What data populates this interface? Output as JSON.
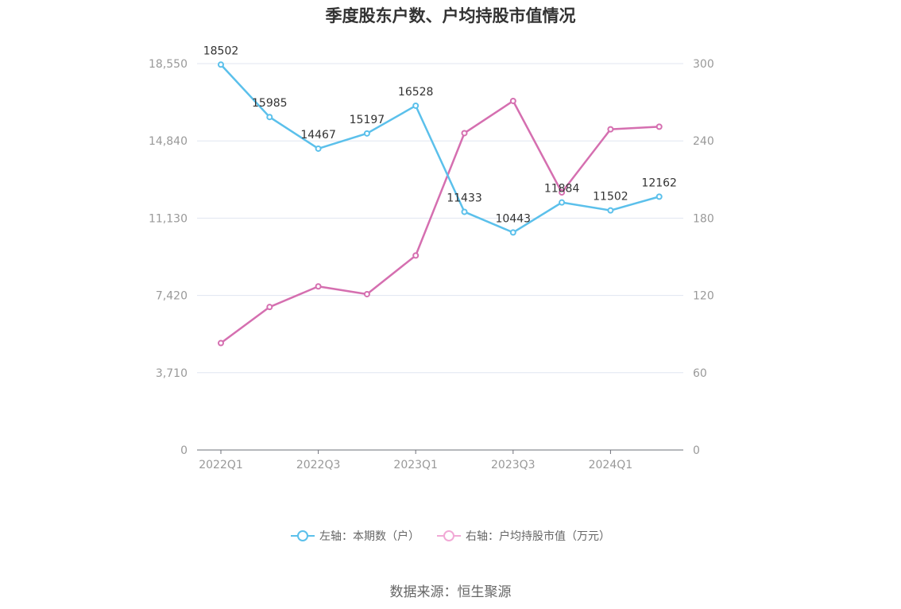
{
  "chart_data": {
    "type": "line",
    "title": "季度股东户数、户均持股市值情况",
    "categories": [
      "2022Q1",
      "2022Q2",
      "2022Q3",
      "2022Q4",
      "2023Q1",
      "2023Q2",
      "2023Q3",
      "2023Q4",
      "2024Q1",
      "2024Q2"
    ],
    "x_tick_labels": [
      "2022Q1",
      "2022Q3",
      "2023Q1",
      "2023Q3",
      "2024Q1"
    ],
    "y_left": {
      "min": 0,
      "max": 18550,
      "ticks": [
        "0",
        "3,710",
        "7,420",
        "11,130",
        "14,840",
        "18,550"
      ]
    },
    "y_right": {
      "min": 0,
      "max": 300,
      "ticks": [
        "0",
        "60",
        "120",
        "180",
        "240",
        "300"
      ]
    },
    "grid": true,
    "legend_position": "bottom",
    "series": [
      {
        "name": "左轴：本期数（户）",
        "axis": "left",
        "color": "#5bc0eb",
        "values": [
          18502,
          15985,
          14467,
          15197,
          16528,
          11433,
          10443,
          11884,
          11502,
          12162
        ],
        "labels": [
          "18502",
          "15985",
          "14467",
          "15197",
          "16528",
          "11433",
          "10443",
          "11884",
          "11502",
          "12162"
        ]
      },
      {
        "name": "右轴：户均持股市值（万元）",
        "axis": "right",
        "color": "#d56fb0",
        "values": [
          83,
          111,
          127,
          121,
          151,
          246,
          271,
          200,
          249,
          251
        ]
      }
    ]
  },
  "legend_colors": {
    "left": "#5bc0eb",
    "right": "#f1a9d6"
  },
  "source": "数据来源：恒生聚源"
}
